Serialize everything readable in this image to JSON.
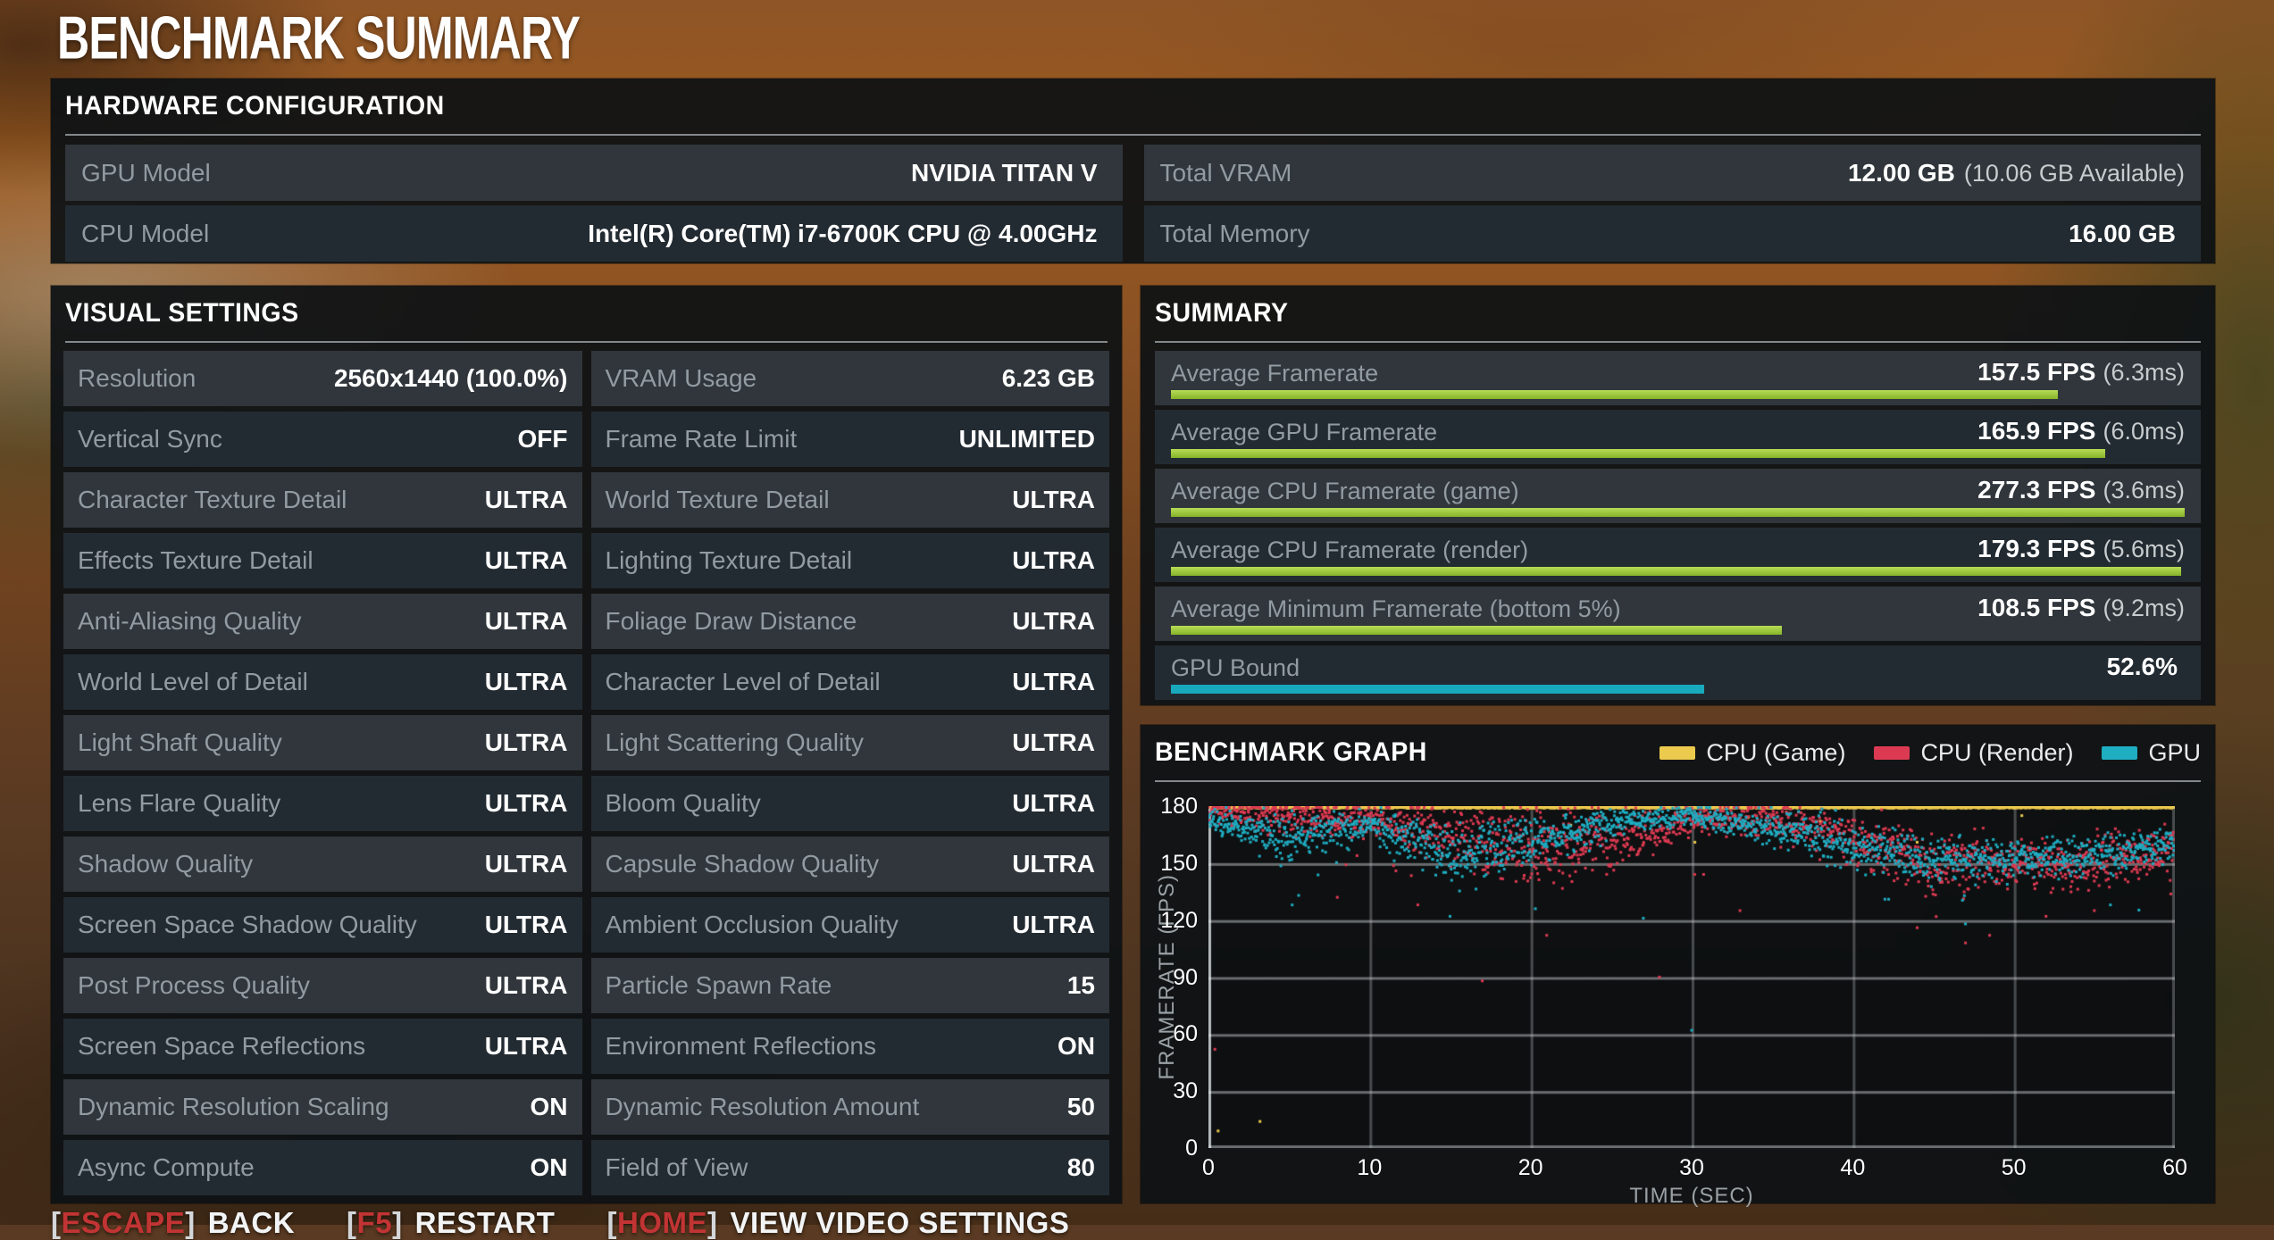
{
  "page_title": "BENCHMARK SUMMARY",
  "hardware": {
    "title": "HARDWARE CONFIGURATION",
    "cells": [
      {
        "label": "GPU Model",
        "value": "NVIDIA TITAN V"
      },
      {
        "label": "Total VRAM",
        "value": "12.00 GB",
        "note": "(10.06 GB Available)"
      },
      {
        "label": "CPU Model",
        "value": "Intel(R) Core(TM) i7-6700K CPU @ 4.00GHz"
      },
      {
        "label": "Total Memory",
        "value": "16.00 GB"
      }
    ]
  },
  "visual_settings": {
    "title": "VISUAL SETTINGS",
    "left": [
      {
        "label": "Resolution",
        "value": "2560x1440 (100.0%)"
      },
      {
        "label": "Vertical Sync",
        "value": "OFF"
      },
      {
        "label": "Character Texture Detail",
        "value": "ULTRA"
      },
      {
        "label": "Effects Texture Detail",
        "value": "ULTRA"
      },
      {
        "label": "Anti-Aliasing Quality",
        "value": "ULTRA"
      },
      {
        "label": "World Level of Detail",
        "value": "ULTRA"
      },
      {
        "label": "Light Shaft Quality",
        "value": "ULTRA"
      },
      {
        "label": "Lens Flare Quality",
        "value": "ULTRA"
      },
      {
        "label": "Shadow Quality",
        "value": "ULTRA"
      },
      {
        "label": "Screen Space Shadow Quality",
        "value": "ULTRA"
      },
      {
        "label": "Post Process Quality",
        "value": "ULTRA"
      },
      {
        "label": "Screen Space Reflections",
        "value": "ULTRA"
      },
      {
        "label": "Dynamic Resolution Scaling",
        "value": "ON"
      },
      {
        "label": "Async Compute",
        "value": "ON"
      }
    ],
    "right": [
      {
        "label": "VRAM Usage",
        "value": "6.23 GB"
      },
      {
        "label": "Frame Rate Limit",
        "value": "UNLIMITED"
      },
      {
        "label": "World Texture Detail",
        "value": "ULTRA"
      },
      {
        "label": "Lighting Texture Detail",
        "value": "ULTRA"
      },
      {
        "label": "Foliage Draw Distance",
        "value": "ULTRA"
      },
      {
        "label": "Character Level of Detail",
        "value": "ULTRA"
      },
      {
        "label": "Light Scattering Quality",
        "value": "ULTRA"
      },
      {
        "label": "Bloom Quality",
        "value": "ULTRA"
      },
      {
        "label": "Capsule Shadow Quality",
        "value": "ULTRA"
      },
      {
        "label": "Ambient Occlusion Quality",
        "value": "ULTRA"
      },
      {
        "label": "Particle Spawn Rate",
        "value": "15"
      },
      {
        "label": "Environment Reflections",
        "value": "ON"
      },
      {
        "label": "Dynamic Resolution Amount",
        "value": "50"
      },
      {
        "label": "Field of View",
        "value": "80"
      }
    ]
  },
  "summary": {
    "title": "SUMMARY",
    "max_fps": 180,
    "bar_color_green": "#9cc93d",
    "bar_color_cyan": "#18a9bd",
    "rows": [
      {
        "label": "Average Framerate",
        "fps_text": "157.5 FPS",
        "ms_text": "(6.3ms)",
        "fps": 157.5
      },
      {
        "label": "Average GPU Framerate",
        "fps_text": "165.9 FPS",
        "ms_text": "(6.0ms)",
        "fps": 165.9
      },
      {
        "label": "Average CPU Framerate (game)",
        "fps_text": "277.3 FPS",
        "ms_text": "(3.6ms)",
        "fps": 277.3
      },
      {
        "label": "Average CPU Framerate (render)",
        "fps_text": "179.3 FPS",
        "ms_text": "(5.6ms)",
        "fps": 179.3
      },
      {
        "label": "Average Minimum Framerate (bottom 5%)",
        "fps_text": "108.5 FPS",
        "ms_text": "(9.2ms)",
        "fps": 108.5
      },
      {
        "label": "GPU Bound",
        "fps_text": "52.6%",
        "ms_text": "",
        "percent": 52.6,
        "color": "#18a9bd"
      }
    ]
  },
  "chart_data": {
    "type": "scatter",
    "title": "BENCHMARK GRAPH",
    "xlabel": "TIME (SEC)",
    "ylabel": "FRAMERATE (FPS)",
    "xlim": [
      0,
      60
    ],
    "ylim": [
      0,
      180
    ],
    "xticks": [
      0,
      10,
      20,
      30,
      40,
      50,
      60
    ],
    "yticks": [
      0,
      30,
      60,
      90,
      120,
      150,
      180
    ],
    "fps_cap": 180,
    "grid": true,
    "legend_position": "top-right",
    "control_step_sec": 5,
    "points_per_second": 30,
    "series": [
      {
        "name": "CPU (Game)",
        "color": "#ecca4e",
        "clamped_at_cap": true,
        "mean_fps": [
          260,
          260,
          260,
          260,
          260,
          260,
          260,
          260,
          260,
          260,
          260,
          260,
          260
        ],
        "spread": [
          0,
          0,
          0,
          0,
          0,
          0,
          0,
          0,
          0,
          0,
          0,
          0,
          0
        ],
        "outliers": [
          [
            0.6,
            9
          ],
          [
            3.2,
            14
          ],
          [
            22.5,
            170
          ],
          [
            30.2,
            161
          ],
          [
            33.5,
            174
          ],
          [
            38,
            172
          ],
          [
            44,
            161
          ],
          [
            50.5,
            175
          ]
        ]
      },
      {
        "name": "CPU (Render)",
        "color": "#dc3a52",
        "clamped_at_cap": false,
        "mean_fps": [
          178,
          175,
          173,
          166,
          158,
          162,
          172,
          174,
          162,
          150,
          151,
          149,
          158
        ],
        "spread": [
          7,
          9,
          9,
          14,
          20,
          16,
          9,
          8,
          14,
          16,
          13,
          14,
          11
        ],
        "outliers": [
          [
            0.4,
            52
          ],
          [
            8,
            132
          ],
          [
            13,
            128
          ],
          [
            17,
            88
          ],
          [
            21,
            112
          ],
          [
            28,
            90
          ],
          [
            33,
            125
          ],
          [
            44,
            116
          ],
          [
            47,
            108
          ],
          [
            48.5,
            112
          ],
          [
            52,
            122
          ],
          [
            55,
            125
          ]
        ]
      },
      {
        "name": "GPU",
        "color": "#1fadc2",
        "clamped_at_cap": false,
        "mean_fps": [
          174,
          162,
          171,
          154,
          162,
          171,
          175,
          169,
          159,
          151,
          153,
          154,
          159
        ],
        "spread": [
          6,
          13,
          7,
          15,
          13,
          7,
          5,
          9,
          13,
          12,
          10,
          9,
          8
        ],
        "outliers": [
          [
            5.2,
            128
          ],
          [
            5.6,
            133
          ],
          [
            15,
            122
          ],
          [
            20.3,
            126
          ],
          [
            27,
            121
          ],
          [
            30,
            62
          ],
          [
            42,
            131
          ],
          [
            47,
            118
          ],
          [
            56,
            128
          ]
        ]
      }
    ]
  },
  "footer": {
    "key_color": "#c23434",
    "items": [
      {
        "key": "ESCAPE",
        "label": "BACK"
      },
      {
        "key": "F5",
        "label": "RESTART"
      },
      {
        "key": "HOME",
        "label": "VIEW VIDEO SETTINGS"
      }
    ]
  }
}
